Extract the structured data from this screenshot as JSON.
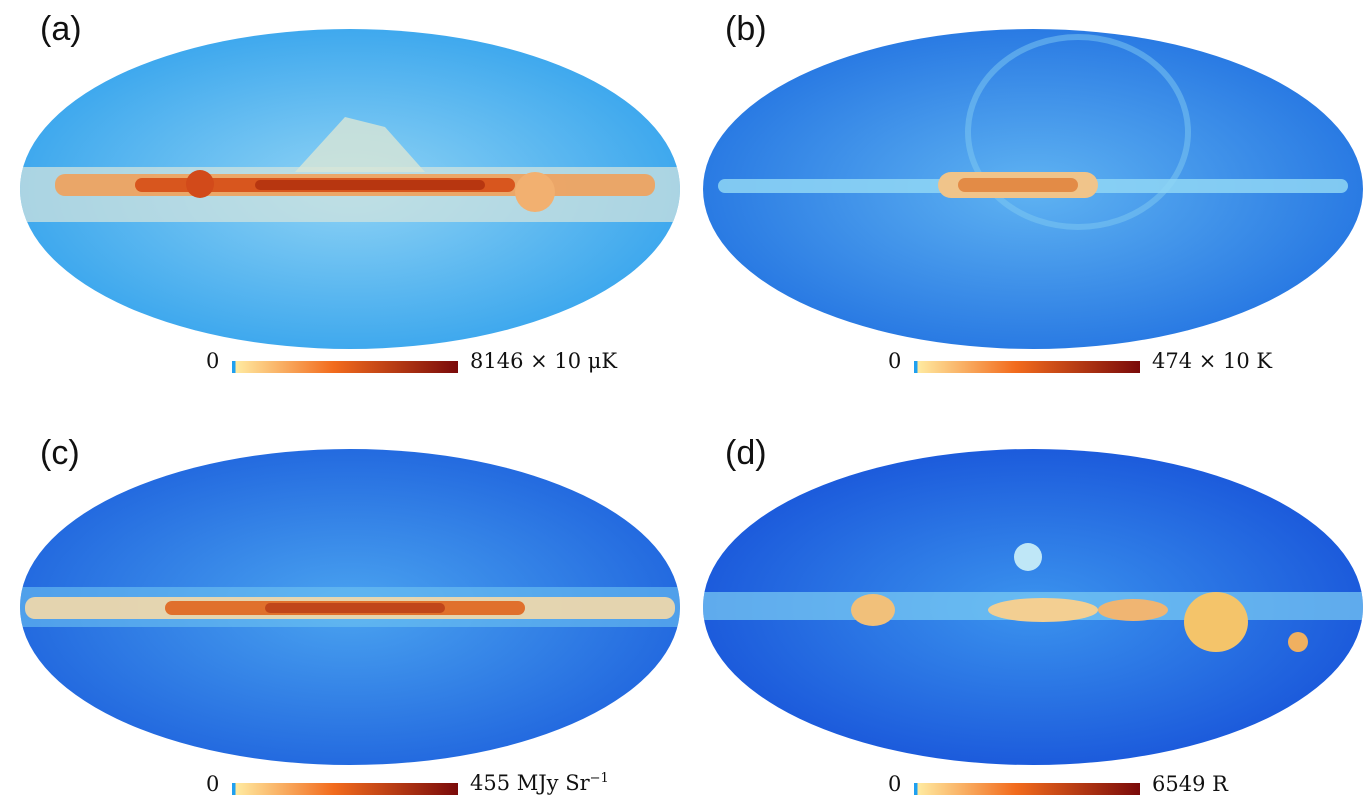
{
  "panels": [
    {
      "label": "(a)",
      "colorbar": {
        "min": "0",
        "max": "8146 × 10 μK"
      },
      "band_color": "#c85a2a",
      "base_color": "#3fa9f0"
    },
    {
      "label": "(b)",
      "colorbar": {
        "min": "0",
        "max": "474 × 10 K"
      },
      "band_color": "#e39a5c",
      "base_color": "#2f7fe6"
    },
    {
      "label": "(c)",
      "colorbar": {
        "min": "0",
        "max": "455 MJy Sr",
        "max_sup": "−1"
      },
      "band_color": "#d86a30",
      "base_color": "#2a6fe2"
    },
    {
      "label": "(d)",
      "colorbar": {
        "min": "0",
        "max": "6549 R"
      },
      "band_color": "#e7a25a",
      "base_color": "#2366e0"
    }
  ],
  "colors": {
    "colorbar_start": "#ffeaa0",
    "colorbar_mid": "#f26b1d",
    "colorbar_end": "#7a0a0a"
  }
}
